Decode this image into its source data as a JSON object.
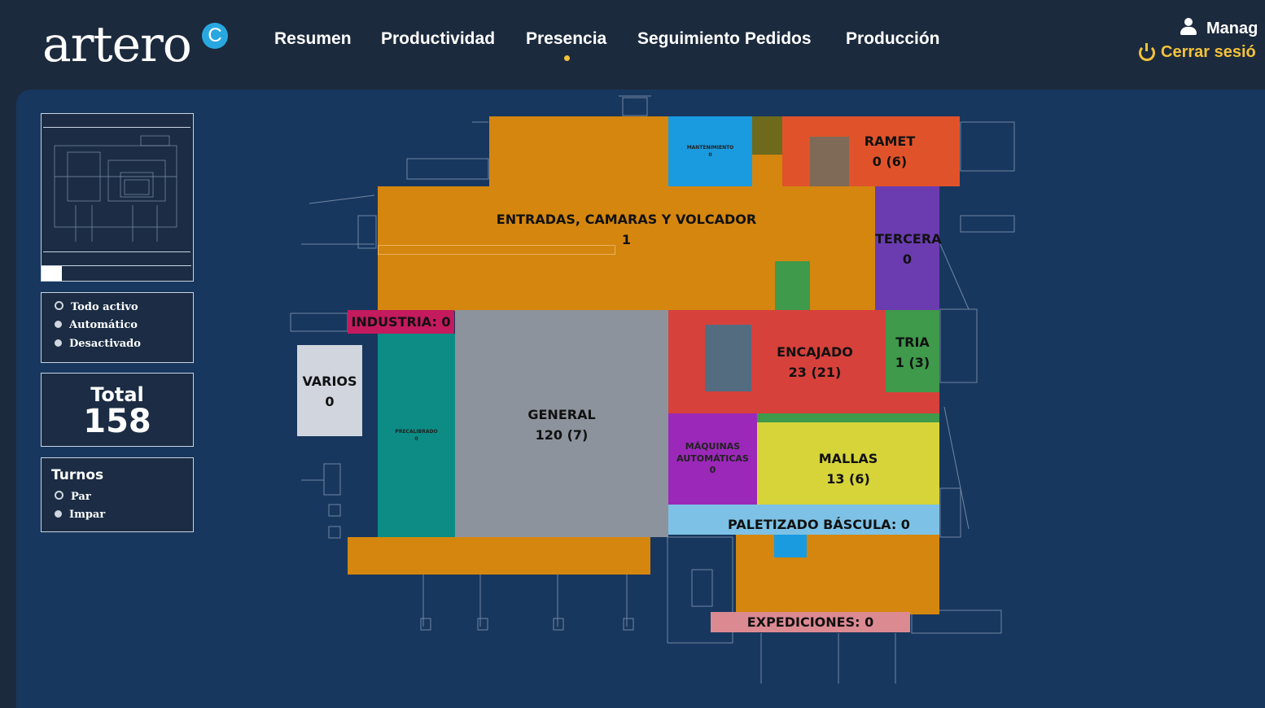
{
  "brand": {
    "name": "artero",
    "badge": "C"
  },
  "nav": {
    "items": [
      "Resumen",
      "Productividad",
      "Presencia",
      "Seguimiento Pedidos",
      "Producción"
    ],
    "active_index": 2
  },
  "user": {
    "name": "Manag",
    "logout_label": "Cerrar sesió"
  },
  "sidebar": {
    "mode_options": [
      "Todo activo",
      "Automático",
      "Desactivado"
    ],
    "mode_selected": "Todo activo",
    "total_label": "Total",
    "total_value": "158",
    "turnos_title": "Turnos",
    "turnos_options": [
      "Par",
      "Impar"
    ],
    "turnos_selected": "Par"
  },
  "zones": {
    "ramet": {
      "name": "RAMET",
      "value": "0 (6)"
    },
    "mantenimiento": {
      "name": "MANTENIMIENTO",
      "value": "0"
    },
    "entradas": {
      "name": "ENTRADAS, CAMARAS Y VOLCADOR",
      "value": "1"
    },
    "tercera": {
      "name": "TERCERA",
      "value": "0"
    },
    "industria": {
      "label": "INDUSTRIA: 0"
    },
    "varios": {
      "name": "VARIOS",
      "value": "0"
    },
    "precalibrado": {
      "name": "PRECALIBRADO",
      "value": "0"
    },
    "general": {
      "name": "GENERAL",
      "value": "120 (7)"
    },
    "encajado": {
      "name": "ENCAJADO",
      "value": "23 (21)"
    },
    "tria": {
      "name": "TRIA",
      "value": "1 (3)"
    },
    "maquinas": {
      "name": "MÁQUINAS AUTOMÁTICAS",
      "value": "0"
    },
    "mallas": {
      "name": "MALLAS",
      "value": "13 (6)"
    },
    "paletizado": {
      "label": "PALETIZADO BÁSCULA: 0"
    },
    "expediciones": {
      "label": "EXPEDICIONES: 0"
    }
  },
  "colors": {
    "header_bg": "#1c2a3d",
    "canvas_bg": "#18375e",
    "accent_yellow": "#f3c23a",
    "orange": "#d4860f",
    "grey": "#8c939c",
    "teal": "#0c8c85",
    "red": "#d7413b",
    "green": "#3f9a4b",
    "purple": "#6a3cb0",
    "magenta": "#9b28b8",
    "yellow": "#d7d43a",
    "light_blue": "#7dc2e6",
    "pink": "#dc8a92",
    "crimson": "#c41a5e",
    "blue": "#1a9be0"
  }
}
